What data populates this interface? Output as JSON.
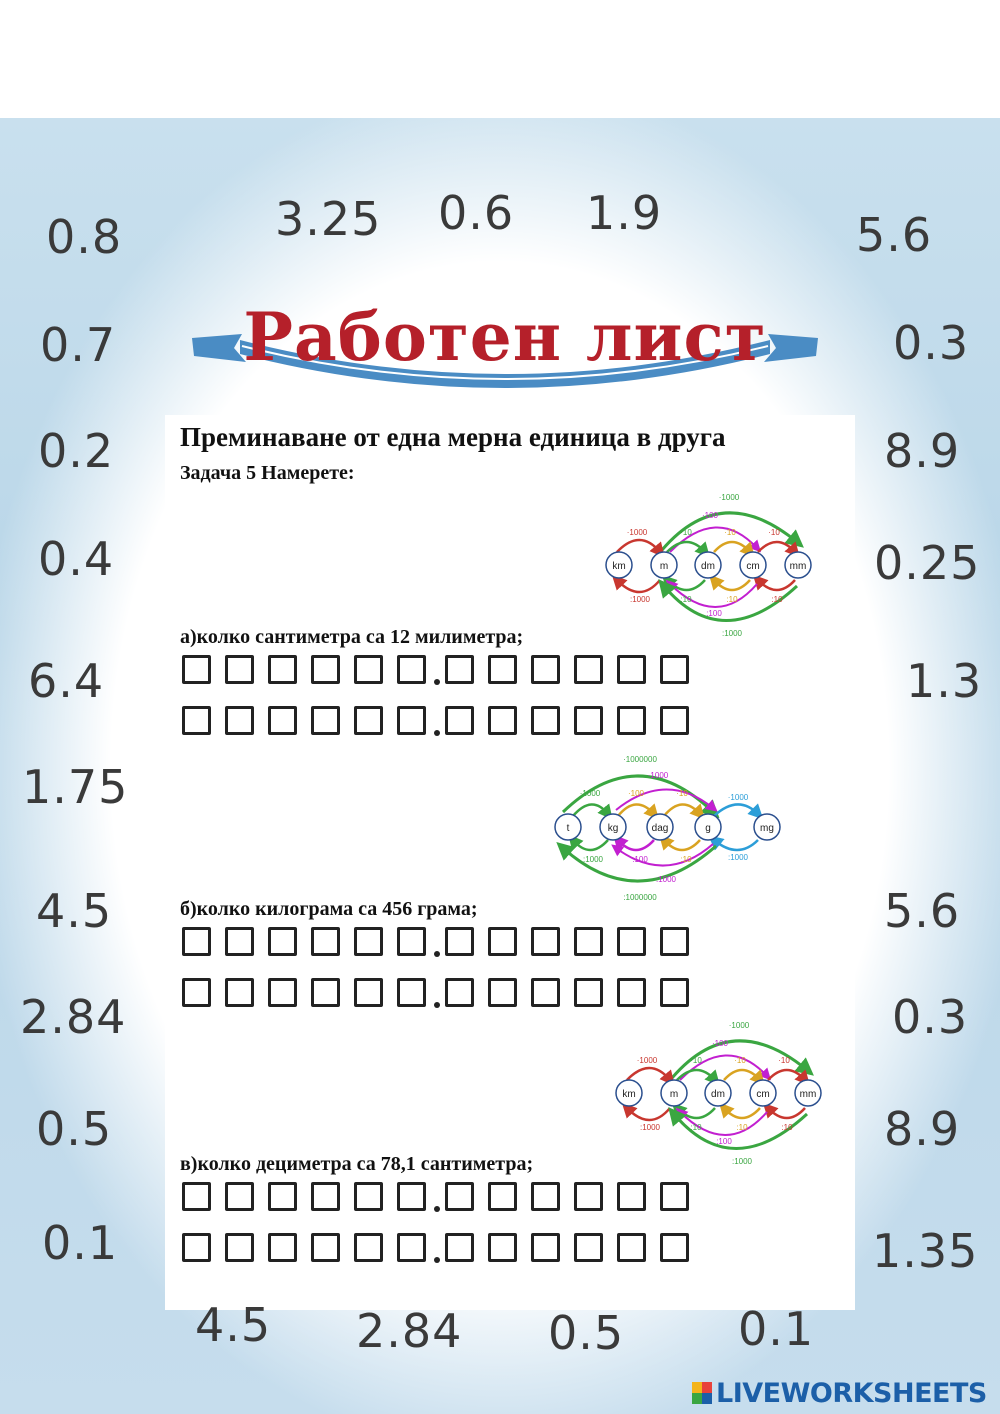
{
  "numbers": {
    "top": [
      "3.25",
      "0.6",
      "1.9"
    ],
    "left": [
      "0.8",
      "0.7",
      "0.2",
      "0.4",
      "6.4",
      "1.75",
      "4.5",
      "2.84",
      "0.5",
      "0.1"
    ],
    "right": [
      "5.6",
      "0.3",
      "8.9",
      "0.25",
      "1.3",
      "5.6",
      "0.3",
      "8.9",
      "1.35"
    ],
    "bottom": [
      "4.5",
      "2.84",
      "0.5",
      "0.1"
    ]
  },
  "title": "Работен лист",
  "heading": "Преминаване от една мерна единица в друга",
  "task": "Задача 5 Намерете:",
  "questions": [
    "а)колко сантиметра са 12 милиметра;",
    "б)колко килограма са 456 грама;",
    "в)колко дециметра са 78,1 сантиметра;"
  ],
  "length_diagram": {
    "units": [
      "km",
      "m",
      "dm",
      "cm",
      "mm"
    ],
    "labels": {
      "mul_1000_outer": "·1000",
      "mul_100": "·100",
      "mul_1000": "·1000",
      "mul_10_a": "·10",
      "mul_10_b": "·10",
      "div_1000": ":1000",
      "div_10_a": ":10",
      "div_10_b": ":10",
      "div_10_c": ":10",
      "div_100": ":100",
      "div_1000_outer": ":1000"
    }
  },
  "mass_diagram": {
    "units": [
      "t",
      "kg",
      "dag",
      "g",
      "mg"
    ],
    "labels": {
      "mul_1000000": "·1000000",
      "mul_1000_top": "·1000",
      "mul_1000_a": "·1000",
      "mul_100": "·100",
      "mul_10": "·10",
      "mul_1000_b": "·1000",
      "div_1000_a": ":1000",
      "div_100": ":100",
      "div_10": ":10",
      "div_1000_b": ":1000",
      "div_1000_bottom": ":1000",
      "div_1000000": ":1000000"
    }
  },
  "logo": "LIVEWORKSHEETS",
  "colors": {
    "title_red": "#b5202a",
    "ribbon_blue": "#4a8cc4",
    "arrow_green": "#3aa641",
    "arrow_magenta": "#c21fd0",
    "arrow_red": "#c8372f",
    "arrow_orange": "#d9a321",
    "arrow_cyan": "#2c9ed8",
    "circle_blue": "#2b4f8e"
  }
}
